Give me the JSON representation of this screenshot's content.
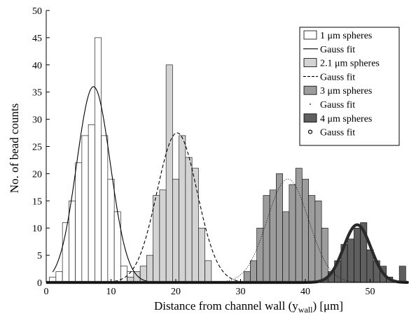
{
  "chart_data": {
    "type": "bar",
    "title": "",
    "xlabel_main": "Distance from channel wall (y",
    "xlabel_sub": "wall",
    "xlabel_tail": ") [μm]",
    "ylabel": "No. of bead counts",
    "xlim": [
      0,
      56
    ],
    "ylim": [
      0,
      50
    ],
    "bin_width": 1,
    "xticks": [
      0,
      10,
      20,
      30,
      40,
      50
    ],
    "yticks": [
      0,
      5,
      10,
      15,
      20,
      25,
      30,
      35,
      40,
      45,
      50
    ],
    "grid": false,
    "legend_position": "top-right",
    "series": [
      {
        "name": "1 μm spheres",
        "kind": "histogram",
        "fill": "#ffffff",
        "bins": [
          [
            1,
            1
          ],
          [
            2,
            2
          ],
          [
            3,
            11
          ],
          [
            4,
            15
          ],
          [
            5,
            22
          ],
          [
            6,
            27
          ],
          [
            7,
            29
          ],
          [
            8,
            45
          ],
          [
            9,
            27
          ],
          [
            10,
            19
          ],
          [
            11,
            13
          ],
          [
            12,
            3
          ],
          [
            13,
            2
          ],
          [
            14,
            0.5
          ]
        ]
      },
      {
        "name": "Gauss fit",
        "kind": "gauss",
        "style": "solid",
        "amplitude": 36,
        "mean": 7.3,
        "sigma": 2.6
      },
      {
        "name": "2.1 μm spheres",
        "kind": "histogram",
        "fill": "#d3d3d3",
        "bins": [
          [
            13,
            1
          ],
          [
            14,
            2
          ],
          [
            15,
            3
          ],
          [
            16,
            5
          ],
          [
            17,
            16
          ],
          [
            18,
            17
          ],
          [
            19,
            40
          ],
          [
            20,
            19
          ],
          [
            21,
            27
          ],
          [
            22,
            23
          ],
          [
            23,
            21
          ],
          [
            24,
            10
          ],
          [
            25,
            4
          ]
        ]
      },
      {
        "name": "Gauss fit",
        "kind": "gauss",
        "style": "dashed",
        "amplitude": 27.5,
        "mean": 20.2,
        "sigma": 3.1
      },
      {
        "name": "3 μm spheres",
        "kind": "histogram",
        "fill": "#9c9c9c",
        "bins": [
          [
            31,
            2
          ],
          [
            32,
            4
          ],
          [
            33,
            10
          ],
          [
            34,
            16
          ],
          [
            35,
            17
          ],
          [
            36,
            20
          ],
          [
            37,
            13
          ],
          [
            38,
            18
          ],
          [
            39,
            21
          ],
          [
            40,
            19
          ],
          [
            41,
            16
          ],
          [
            42,
            15
          ],
          [
            43,
            10
          ]
        ]
      },
      {
        "name": "Gauss fit",
        "kind": "gauss",
        "style": "dotted",
        "amplitude": 19,
        "mean": 37.3,
        "sigma": 3.2
      },
      {
        "name": "4 μm spheres",
        "kind": "histogram",
        "fill": "#5f5f5f",
        "bins": [
          [
            43,
            0.5
          ],
          [
            44,
            2
          ],
          [
            45,
            4
          ],
          [
            46,
            7
          ],
          [
            47,
            8
          ],
          [
            48,
            10
          ],
          [
            49,
            11
          ],
          [
            50,
            6
          ],
          [
            51,
            4
          ],
          [
            52,
            3
          ],
          [
            53,
            1
          ],
          [
            55,
            3
          ]
        ]
      },
      {
        "name": "Gauss fit",
        "kind": "gauss",
        "style": "circles",
        "amplitude": 10.6,
        "mean": 48.0,
        "sigma": 2.1
      }
    ]
  }
}
